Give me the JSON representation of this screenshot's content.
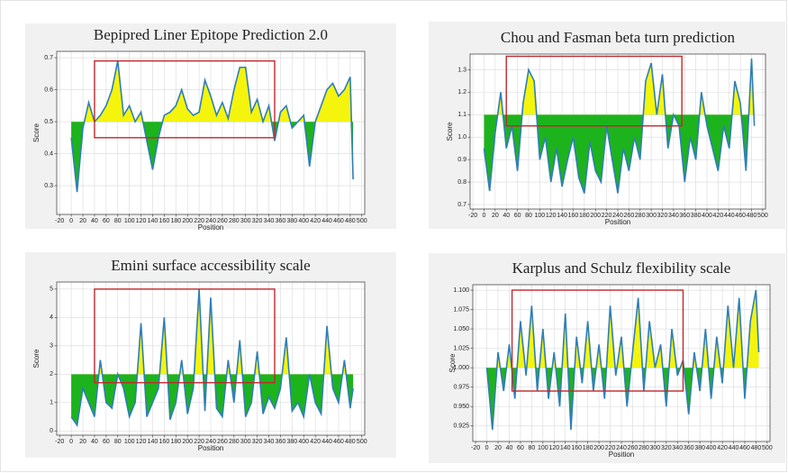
{
  "chart_data": [
    {
      "type": "line",
      "title": "Bepipred Liner Epitope Prediction 2.0",
      "xlabel": "Position",
      "ylabel": "Score",
      "x": [
        0,
        10,
        20,
        30,
        40,
        50,
        60,
        70,
        80,
        90,
        100,
        110,
        120,
        130,
        140,
        150,
        160,
        170,
        180,
        190,
        200,
        210,
        220,
        230,
        240,
        250,
        260,
        270,
        280,
        290,
        300,
        310,
        320,
        330,
        340,
        350,
        360,
        370,
        380,
        390,
        400,
        410,
        420,
        430,
        440,
        450,
        460,
        470,
        480,
        485
      ],
      "values": [
        0.45,
        0.28,
        0.48,
        0.56,
        0.5,
        0.52,
        0.55,
        0.6,
        0.69,
        0.52,
        0.55,
        0.5,
        0.53,
        0.44,
        0.35,
        0.45,
        0.52,
        0.53,
        0.55,
        0.6,
        0.54,
        0.52,
        0.53,
        0.63,
        0.58,
        0.52,
        0.56,
        0.51,
        0.6,
        0.67,
        0.67,
        0.53,
        0.57,
        0.5,
        0.55,
        0.44,
        0.53,
        0.55,
        0.48,
        0.5,
        0.52,
        0.36,
        0.5,
        0.55,
        0.6,
        0.62,
        0.58,
        0.6,
        0.64,
        0.32
      ],
      "threshold": 0.5,
      "color": "#2f7fb5",
      "above_color": "#f4f40c",
      "below_color": "#1db31d",
      "xlim": [
        -25,
        505
      ],
      "xticks": [
        -20,
        0,
        20,
        40,
        60,
        80,
        100,
        120,
        140,
        160,
        180,
        200,
        220,
        240,
        260,
        280,
        300,
        320,
        340,
        360,
        380,
        400,
        420,
        440,
        460,
        480,
        500
      ],
      "ylim": [
        0.21,
        0.72
      ],
      "yticks": [
        0.3,
        0.4,
        0.5,
        0.6,
        0.7
      ],
      "grid": true,
      "highlight": {
        "x": [
          40,
          350
        ],
        "y": [
          0.45,
          0.69
        ],
        "color": "#c0282d"
      }
    },
    {
      "type": "line",
      "title": "Chou and Fasman beta turn prediction",
      "xlabel": "Position",
      "ylabel": "Score",
      "x": [
        0,
        10,
        20,
        30,
        40,
        50,
        60,
        70,
        80,
        90,
        100,
        110,
        120,
        130,
        140,
        150,
        160,
        170,
        180,
        190,
        200,
        210,
        220,
        230,
        240,
        250,
        260,
        270,
        280,
        290,
        300,
        310,
        320,
        330,
        340,
        350,
        360,
        370,
        380,
        390,
        400,
        410,
        420,
        430,
        440,
        450,
        460,
        470,
        480,
        485
      ],
      "values": [
        0.95,
        0.76,
        1.02,
        1.2,
        0.95,
        1.05,
        0.85,
        1.15,
        1.3,
        1.25,
        0.9,
        1.0,
        0.8,
        0.95,
        0.78,
        0.9,
        1.0,
        0.82,
        0.75,
        0.98,
        0.85,
        0.8,
        1.05,
        0.9,
        0.75,
        0.95,
        0.85,
        1.0,
        0.9,
        1.25,
        1.33,
        1.1,
        1.28,
        0.95,
        1.1,
        1.05,
        0.8,
        1.0,
        0.9,
        1.2,
        1.05,
        0.95,
        0.85,
        1.05,
        0.95,
        1.25,
        1.15,
        0.85,
        1.35,
        1.05
      ],
      "threshold": 1.1,
      "color": "#2f7fb5",
      "above_color": "#f4f40c",
      "below_color": "#1db31d",
      "xlim": [
        -25,
        505
      ],
      "xticks": [
        -20,
        0,
        20,
        40,
        60,
        80,
        100,
        120,
        140,
        160,
        180,
        200,
        220,
        240,
        260,
        280,
        300,
        320,
        340,
        360,
        380,
        400,
        420,
        440,
        460,
        480,
        500
      ],
      "ylim": [
        0.68,
        1.37
      ],
      "yticks": [
        0.7,
        0.8,
        0.9,
        {
          "value": 1.0,
          "label": "1.0"
        },
        1.1,
        1.2,
        1.3
      ],
      "grid": true,
      "highlight": {
        "x": [
          40,
          355
        ],
        "y": [
          1.05,
          1.36
        ],
        "color": "#c0282d"
      }
    },
    {
      "type": "line",
      "title": "Emini surface accessibility scale",
      "xlabel": "Position",
      "ylabel": "Score",
      "x": [
        0,
        10,
        20,
        30,
        40,
        50,
        60,
        70,
        80,
        90,
        100,
        110,
        120,
        130,
        140,
        150,
        160,
        170,
        180,
        190,
        200,
        210,
        220,
        230,
        240,
        250,
        260,
        270,
        280,
        290,
        300,
        310,
        320,
        330,
        340,
        350,
        360,
        370,
        380,
        390,
        400,
        410,
        420,
        430,
        440,
        450,
        460,
        470,
        480,
        485
      ],
      "values": [
        0.5,
        0.2,
        1.5,
        1.0,
        0.5,
        2.5,
        1.0,
        0.8,
        2.0,
        1.5,
        0.5,
        1.0,
        3.8,
        0.5,
        1.0,
        1.5,
        4.0,
        0.4,
        1.0,
        2.5,
        0.6,
        1.5,
        5.0,
        0.7,
        4.7,
        0.8,
        0.5,
        2.5,
        1.0,
        3.2,
        0.5,
        1.0,
        2.8,
        0.6,
        1.2,
        0.8,
        1.5,
        3.3,
        0.7,
        1.0,
        0.5,
        2.0,
        1.0,
        0.6,
        3.7,
        1.5,
        1.0,
        2.5,
        0.8,
        1.5
      ],
      "threshold": 2,
      "color": "#2f7fb5",
      "above_color": "#f4f40c",
      "below_color": "#1db31d",
      "xlim": [
        -25,
        505
      ],
      "xticks": [
        -20,
        0,
        20,
        40,
        60,
        80,
        100,
        120,
        140,
        160,
        180,
        200,
        220,
        240,
        260,
        280,
        300,
        320,
        340,
        360,
        380,
        400,
        420,
        440,
        460,
        480,
        500
      ],
      "ylim": [
        -0.15,
        5.25
      ],
      "yticks": [
        0,
        1,
        2,
        3,
        4,
        5
      ],
      "grid": true,
      "highlight": {
        "x": [
          40,
          350
        ],
        "y": [
          1.7,
          5.0
        ],
        "color": "#c0282d"
      }
    },
    {
      "type": "line",
      "title": "Karplus and Schulz flexibility scale",
      "xlabel": "Position",
      "ylabel": "Score",
      "x": [
        0,
        10,
        20,
        30,
        40,
        50,
        60,
        70,
        80,
        90,
        100,
        110,
        120,
        130,
        140,
        150,
        160,
        170,
        180,
        190,
        200,
        210,
        220,
        230,
        240,
        250,
        260,
        270,
        280,
        290,
        300,
        310,
        320,
        330,
        340,
        350,
        360,
        370,
        380,
        390,
        400,
        410,
        420,
        430,
        440,
        450,
        460,
        470,
        480,
        485
      ],
      "values": [
        1.0,
        0.92,
        1.02,
        0.97,
        1.03,
        0.96,
        1.06,
        0.99,
        1.08,
        0.97,
        1.05,
        0.96,
        1.02,
        0.95,
        1.07,
        0.92,
        1.04,
        0.98,
        1.06,
        0.97,
        1.03,
        0.96,
        1.08,
        0.99,
        1.04,
        0.95,
        1.02,
        1.09,
        0.97,
        1.06,
        1.0,
        1.03,
        0.95,
        1.05,
        0.99,
        1.01,
        0.94,
        1.02,
        0.97,
        1.05,
        0.96,
        1.04,
        0.98,
        1.08,
        1.0,
        1.09,
        0.96,
        1.06,
        1.1,
        1.02
      ],
      "threshold": 1.0,
      "color": "#2f7fb5",
      "above_color": "#f4f40c",
      "below_color": "#1db31d",
      "xlim": [
        -25,
        505
      ],
      "xticks": [
        -20,
        0,
        20,
        40,
        60,
        80,
        100,
        120,
        140,
        160,
        180,
        200,
        220,
        240,
        260,
        280,
        300,
        320,
        340,
        360,
        380,
        400,
        420,
        440,
        460,
        480,
        500
      ],
      "ylim": [
        0.905,
        1.107
      ],
      "yticks": [
        0.925,
        {
          "value": 0.95,
          "label": "0.950"
        },
        0.975,
        {
          "value": 1.0,
          "label": "1.000"
        },
        1.025,
        {
          "value": 1.05,
          "label": "1.050"
        },
        1.075,
        {
          "value": 1.1,
          "label": "1.100"
        }
      ],
      "grid": true,
      "highlight": {
        "x": [
          45,
          350
        ],
        "y": [
          0.97,
          1.1
        ],
        "color": "#c0282d"
      }
    }
  ]
}
